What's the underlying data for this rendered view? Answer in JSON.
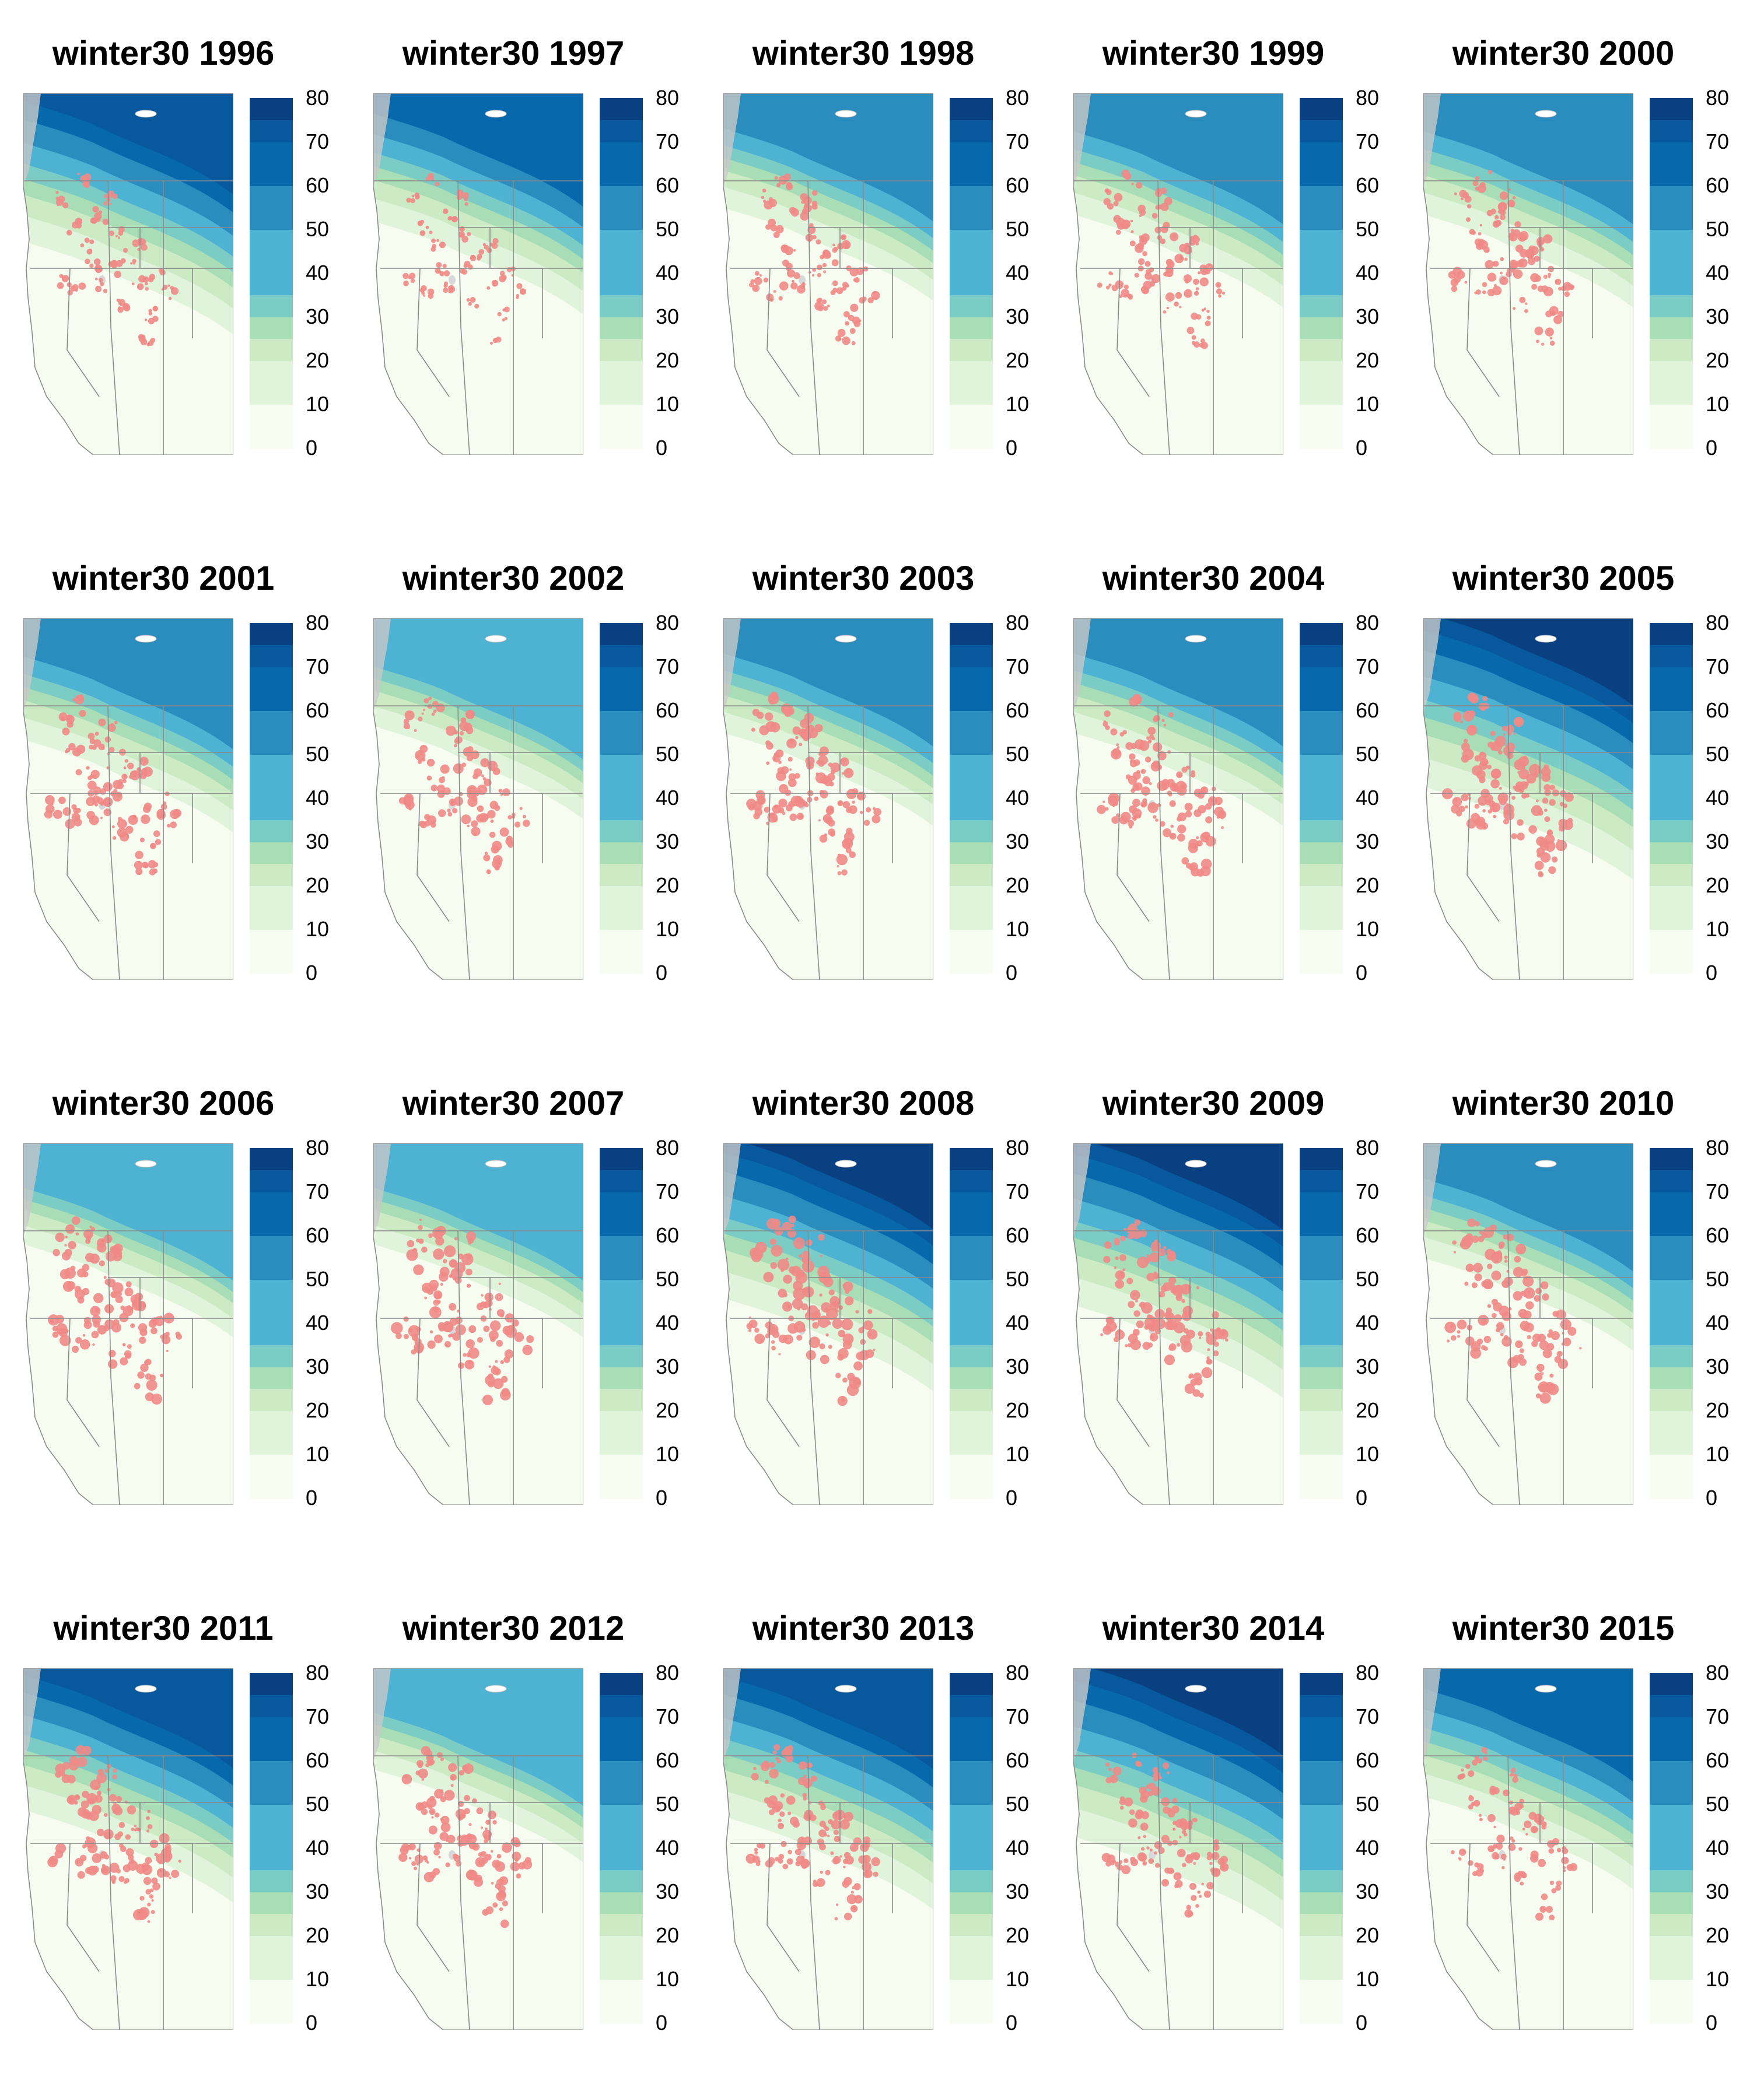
{
  "figure": {
    "panels": [
      {
        "title": "winter30 1996",
        "year": 1996
      },
      {
        "title": "winter30 1997",
        "year": 1997
      },
      {
        "title": "winter30 1998",
        "year": 1998
      },
      {
        "title": "winter30 1999",
        "year": 1999
      },
      {
        "title": "winter30 2000",
        "year": 2000
      },
      {
        "title": "winter30 2001",
        "year": 2001
      },
      {
        "title": "winter30 2002",
        "year": 2002
      },
      {
        "title": "winter30 2003",
        "year": 2003
      },
      {
        "title": "winter30 2004",
        "year": 2004
      },
      {
        "title": "winter30 2005",
        "year": 2005
      },
      {
        "title": "winter30 2006",
        "year": 2006
      },
      {
        "title": "winter30 2007",
        "year": 2007
      },
      {
        "title": "winter30 2008",
        "year": 2008
      },
      {
        "title": "winter30 2009",
        "year": 2009
      },
      {
        "title": "winter30 2010",
        "year": 2010
      },
      {
        "title": "winter30 2011",
        "year": 2011
      },
      {
        "title": "winter30 2012",
        "year": 2012
      },
      {
        "title": "winter30 2013",
        "year": 2013
      },
      {
        "title": "winter30 2014",
        "year": 2014
      },
      {
        "title": "winter30 2015",
        "year": 2015
      }
    ],
    "legend": {
      "tick_labels": [
        "0",
        "10",
        "20",
        "30",
        "40",
        "50",
        "60",
        "70",
        "80"
      ],
      "color_bins": [
        {
          "from": 0,
          "to": 5,
          "color": "#f7fcf0"
        },
        {
          "from": 5,
          "to": 10,
          "color": "#f7fcf0"
        },
        {
          "from": 10,
          "to": 15,
          "color": "#e0f3db"
        },
        {
          "from": 15,
          "to": 20,
          "color": "#e0f3db"
        },
        {
          "from": 20,
          "to": 25,
          "color": "#ccebc5"
        },
        {
          "from": 25,
          "to": 30,
          "color": "#a8ddb5"
        },
        {
          "from": 30,
          "to": 35,
          "color": "#7bccc4"
        },
        {
          "from": 35,
          "to": 40,
          "color": "#4eb3d3"
        },
        {
          "from": 40,
          "to": 45,
          "color": "#4eb3d3"
        },
        {
          "from": 45,
          "to": 50,
          "color": "#4eb3d3"
        },
        {
          "from": 50,
          "to": 55,
          "color": "#2b8cbe"
        },
        {
          "from": 55,
          "to": 60,
          "color": "#2b8cbe"
        },
        {
          "from": 60,
          "to": 65,
          "color": "#0868ac"
        },
        {
          "from": 65,
          "to": 70,
          "color": "#0868ac"
        },
        {
          "from": 70,
          "to": 75,
          "color": "#08589e"
        },
        {
          "from": 75,
          "to": 80,
          "color": "#084081"
        }
      ]
    },
    "colors": {
      "outbreak_overlay": "#ef8a87",
      "land_background": "#f7fcf0",
      "boundary_lines": "#8a8a8a",
      "ocean_coast_gray": "#c8c8c8",
      "lake_fill": "#ffffff"
    }
  }
}
